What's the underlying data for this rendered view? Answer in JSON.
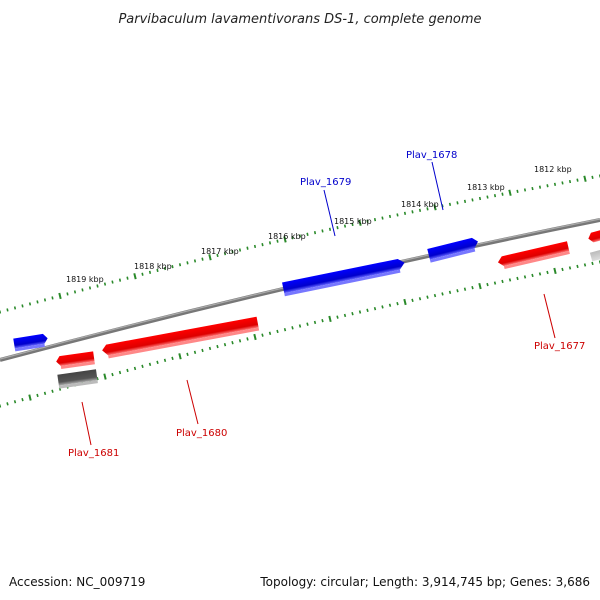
{
  "title": "Parvibaculum lavamentivorans DS-1, complete genome",
  "footer": {
    "accession": "Accession: NC_009719",
    "summary": "Topology: circular; Length: 3,914,745 bp; Genes: 3,686"
  },
  "colors": {
    "forward": "#0000ee",
    "reverse": "#ee0000",
    "backbone": "#888888",
    "ticks": "#2a8a2a",
    "other_feature": "#555555"
  },
  "scale_labels": [
    "1812 kbp",
    "1813 kbp",
    "1814 kbp",
    "1815 kbp",
    "1816 kbp",
    "1817 kbp",
    "1818 kbp",
    "1819 kbp"
  ],
  "gene_labels": [
    {
      "name": "Plav_1677",
      "strand": "reverse"
    },
    {
      "name": "Plav_1678",
      "strand": "forward"
    },
    {
      "name": "Plav_1679",
      "strand": "forward"
    },
    {
      "name": "Plav_1680",
      "strand": "reverse"
    },
    {
      "name": "Plav_1681",
      "strand": "reverse"
    }
  ]
}
